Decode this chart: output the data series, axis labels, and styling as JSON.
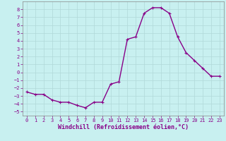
{
  "x": [
    0,
    1,
    2,
    3,
    4,
    5,
    6,
    7,
    8,
    9,
    10,
    11,
    12,
    13,
    14,
    15,
    16,
    17,
    18,
    19,
    20,
    21,
    22,
    23
  ],
  "y": [
    -2.5,
    -2.8,
    -2.8,
    -3.5,
    -3.8,
    -3.8,
    -4.2,
    -4.5,
    -3.8,
    -3.8,
    -1.5,
    -1.2,
    4.2,
    4.5,
    7.5,
    8.2,
    8.2,
    7.5,
    4.5,
    2.5,
    1.5,
    0.5,
    -0.5,
    -0.5
  ],
  "line_color": "#880088",
  "marker": "+",
  "marker_size": 3,
  "line_width": 1.0,
  "background_color": "#c8f0f0",
  "grid_color": "#b0d8d8",
  "xlabel": "Windchill (Refroidissement éolien,°C)",
  "xlabel_fontsize": 6,
  "yticks": [
    -5,
    -4,
    -3,
    -2,
    -1,
    0,
    1,
    2,
    3,
    4,
    5,
    6,
    7,
    8
  ],
  "xticks": [
    0,
    1,
    2,
    3,
    4,
    5,
    6,
    7,
    8,
    9,
    10,
    11,
    12,
    13,
    14,
    15,
    16,
    17,
    18,
    19,
    20,
    21,
    22,
    23
  ],
  "ylim": [
    -5.5,
    9.0
  ],
  "xlim": [
    -0.5,
    23.5
  ],
  "tick_color": "#880088",
  "tick_fontsize": 5.0,
  "spine_color": "#888888"
}
